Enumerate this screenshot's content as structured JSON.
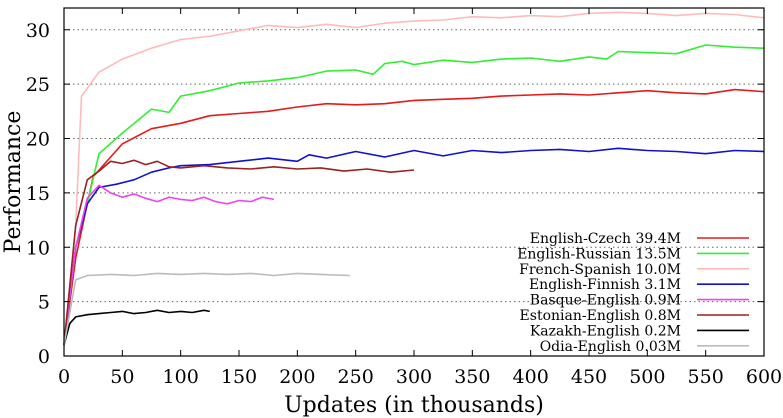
{
  "chart_data": {
    "type": "line",
    "xlabel": "Updates (in thousands)",
    "ylabel": "Performance",
    "xlim": [
      0,
      600
    ],
    "ylim": [
      0,
      32
    ],
    "xticks": [
      0,
      50,
      100,
      150,
      200,
      250,
      300,
      350,
      400,
      450,
      500,
      550,
      600
    ],
    "yticks": [
      0,
      5,
      10,
      15,
      20,
      25,
      30
    ],
    "grid": "horizontal-dotted",
    "legend_position": "bottom-right",
    "series": [
      {
        "name": "English-Czech 39.4M",
        "color": "#e41a1c",
        "x": [
          0,
          10,
          25,
          50,
          75,
          100,
          125,
          150,
          175,
          200,
          225,
          250,
          275,
          300,
          325,
          350,
          375,
          400,
          425,
          450,
          475,
          500,
          525,
          550,
          575,
          600
        ],
        "y": [
          1,
          9,
          16.5,
          19.5,
          20.9,
          21.4,
          22.1,
          22.3,
          22.5,
          22.9,
          23.2,
          23.1,
          23.2,
          23.5,
          23.6,
          23.7,
          23.9,
          24.0,
          24.1,
          24.0,
          24.2,
          24.4,
          24.2,
          24.1,
          24.5,
          24.3
        ]
      },
      {
        "name": "English-Russian 13.5M",
        "color": "#33ee33",
        "x": [
          0,
          10,
          20,
          30,
          50,
          75,
          90,
          100,
          125,
          150,
          175,
          200,
          225,
          250,
          265,
          275,
          290,
          300,
          325,
          350,
          375,
          400,
          425,
          450,
          465,
          475,
          500,
          525,
          550,
          575,
          600
        ],
        "y": [
          1,
          10,
          14,
          18.6,
          20.5,
          22.7,
          22.4,
          23.9,
          24.4,
          25.1,
          25.3,
          25.6,
          26.2,
          26.3,
          25.9,
          26.9,
          27.1,
          26.8,
          27.2,
          27.0,
          27.3,
          27.4,
          27.1,
          27.5,
          27.3,
          28.0,
          27.9,
          27.8,
          28.6,
          28.4,
          28.3
        ]
      },
      {
        "name": "French-Spanish 10.0M",
        "color": "#ffbbbb",
        "x": [
          0,
          10,
          15,
          30,
          50,
          75,
          100,
          125,
          150,
          175,
          200,
          225,
          250,
          275,
          300,
          325,
          350,
          375,
          400,
          425,
          450,
          475,
          500,
          525,
          550,
          575,
          600
        ],
        "y": [
          1,
          12,
          23.9,
          26.1,
          27.3,
          28.3,
          29.1,
          29.4,
          29.9,
          30.4,
          30.2,
          30.5,
          30.2,
          30.6,
          30.8,
          30.9,
          31.2,
          31.1,
          31.3,
          31.2,
          31.5,
          31.6,
          31.5,
          31.3,
          31.5,
          31.4,
          31.1
        ]
      },
      {
        "name": "English-Finnish 3.1M",
        "color": "#1111cc",
        "x": [
          0,
          10,
          20,
          30,
          45,
          60,
          75,
          90,
          100,
          125,
          150,
          175,
          200,
          210,
          225,
          250,
          275,
          300,
          325,
          350,
          375,
          400,
          425,
          450,
          475,
          500,
          525,
          550,
          575,
          600
        ],
        "y": [
          1,
          10,
          14,
          15.5,
          15.8,
          16.2,
          16.9,
          17.3,
          17.5,
          17.6,
          17.9,
          18.2,
          17.9,
          18.5,
          18.2,
          18.8,
          18.3,
          18.9,
          18.4,
          18.9,
          18.7,
          18.9,
          19.0,
          18.8,
          19.1,
          18.9,
          18.8,
          18.6,
          18.9,
          18.8
        ]
      },
      {
        "name": "Basque-English 0.9M",
        "color": "#ee44ee",
        "x": [
          0,
          10,
          20,
          30,
          40,
          50,
          60,
          70,
          80,
          90,
          100,
          110,
          120,
          130,
          140,
          150,
          160,
          170,
          180
        ],
        "y": [
          1,
          10,
          14.5,
          15.7,
          15.0,
          14.6,
          14.9,
          14.5,
          14.2,
          14.6,
          14.4,
          14.3,
          14.6,
          14.2,
          14.0,
          14.3,
          14.2,
          14.6,
          14.4
        ]
      },
      {
        "name": "Estonian-English 0.8M",
        "color": "#992222",
        "x": [
          0,
          10,
          20,
          30,
          40,
          50,
          60,
          70,
          80,
          90,
          100,
          120,
          140,
          160,
          180,
          200,
          220,
          240,
          260,
          280,
          300
        ],
        "y": [
          1,
          12,
          16.2,
          17.0,
          17.9,
          17.7,
          18.0,
          17.6,
          17.9,
          17.4,
          17.3,
          17.5,
          17.3,
          17.2,
          17.4,
          17.2,
          17.3,
          17.0,
          17.2,
          16.9,
          17.1
        ]
      },
      {
        "name": "Kazakh-English 0.2M",
        "color": "#000000",
        "x": [
          0,
          5,
          10,
          20,
          30,
          40,
          50,
          60,
          70,
          80,
          90,
          100,
          110,
          120,
          125
        ],
        "y": [
          1,
          3,
          3.6,
          3.8,
          3.9,
          4.0,
          4.1,
          3.9,
          4.0,
          4.2,
          4.0,
          4.1,
          4.0,
          4.2,
          4.1
        ]
      },
      {
        "name": "Odia-English 0.03M",
        "color": "#bbbbbb",
        "x": [
          0,
          10,
          20,
          40,
          60,
          80,
          100,
          120,
          140,
          160,
          180,
          200,
          220,
          245
        ],
        "y": [
          1,
          7,
          7.4,
          7.5,
          7.4,
          7.6,
          7.5,
          7.6,
          7.5,
          7.6,
          7.4,
          7.6,
          7.5,
          7.4
        ]
      }
    ]
  }
}
